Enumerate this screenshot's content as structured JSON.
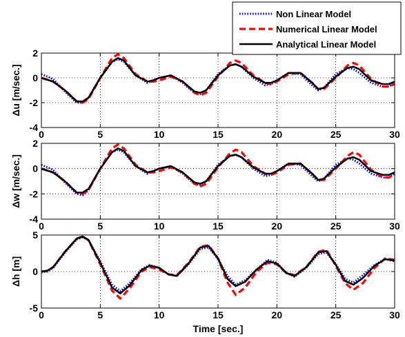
{
  "chart_data": {
    "type": "line",
    "legend": {
      "placement": "top-right",
      "entries": [
        {
          "label": "Non Linear Model",
          "color": "#0000ff",
          "style": "dotted"
        },
        {
          "label": "Numerical Linear Model",
          "color": "#ff0000",
          "style": "dashed"
        },
        {
          "label": "Analytical Linear Model",
          "color": "#000000",
          "style": "solid"
        }
      ]
    },
    "xlabel": "Time [sec.]",
    "xlim": [
      0,
      30
    ],
    "xticks": [
      0,
      5,
      10,
      15,
      20,
      25,
      30
    ],
    "grid": true,
    "subplots": [
      {
        "ylabel": "Δu [m/sec.]",
        "ylim": [
          -4,
          2
        ],
        "yticks": [
          -4,
          -2,
          0,
          2
        ],
        "series": [
          {
            "name": "Non Linear Model",
            "x": [
              0,
              1,
              2,
              3,
              3.5,
              4,
              5,
              6,
              6.5,
              7,
              8,
              9,
              9.5,
              10,
              11,
              12,
              13,
              13.5,
              14,
              15,
              16,
              16.5,
              17,
              18,
              19,
              19.5,
              20,
              21,
              22,
              23,
              23.5,
              24,
              25,
              26,
              26.5,
              27,
              28,
              29,
              29.5,
              30
            ],
            "y": [
              0.3,
              -0.1,
              -1.1,
              -2.0,
              -2.0,
              -1.6,
              0,
              1.3,
              1.5,
              1.3,
              0.2,
              -0.4,
              -0.2,
              0.0,
              0.2,
              -0.4,
              -1.2,
              -1.3,
              -1.0,
              0.3,
              1.0,
              1.1,
              0.9,
              0.0,
              -0.6,
              -0.5,
              -0.2,
              0.4,
              0.3,
              -0.6,
              -1.0,
              -0.8,
              0.3,
              0.8,
              0.7,
              0.4,
              -0.4,
              -0.7,
              -0.7,
              -0.4
            ]
          },
          {
            "name": "Numerical Linear Model",
            "x": [
              0,
              1,
              2,
              3,
              3.5,
              4,
              5,
              6,
              6.5,
              7,
              8,
              9,
              9.5,
              10,
              11,
              12,
              13,
              13.5,
              14,
              15,
              16,
              16.5,
              17,
              18,
              19,
              19.5,
              20,
              21,
              22,
              23,
              23.5,
              24,
              25,
              26,
              26.5,
              27,
              28,
              29,
              29.5,
              30
            ],
            "y": [
              0.0,
              -0.3,
              -1.0,
              -1.9,
              -2.0,
              -1.7,
              0,
              1.6,
              1.9,
              1.6,
              0.3,
              -0.3,
              -0.3,
              -0.2,
              0.1,
              -0.3,
              -1.2,
              -1.4,
              -1.2,
              0.1,
              1.2,
              1.4,
              1.2,
              0.2,
              -0.4,
              -0.5,
              -0.3,
              0.3,
              0.4,
              -0.4,
              -0.9,
              -0.9,
              0.0,
              1.0,
              1.2,
              1.0,
              -0.1,
              -0.7,
              -0.7,
              -0.5
            ]
          },
          {
            "name": "Analytical Linear Model",
            "x": [
              0,
              1,
              2,
              3,
              3.5,
              4,
              5,
              6,
              6.5,
              7,
              8,
              9,
              9.5,
              10,
              11,
              12,
              13,
              13.5,
              14,
              15,
              16,
              16.5,
              17,
              18,
              19,
              19.5,
              20,
              21,
              22,
              23,
              23.5,
              24,
              25,
              26,
              26.5,
              27,
              28,
              29,
              29.5,
              30
            ],
            "y": [
              0.0,
              -0.3,
              -1.0,
              -1.9,
              -1.9,
              -1.6,
              0,
              1.3,
              1.6,
              1.4,
              0.2,
              -0.3,
              -0.2,
              0.0,
              0.2,
              -0.3,
              -1.1,
              -1.2,
              -1.0,
              0.2,
              1.0,
              1.1,
              0.9,
              0.1,
              -0.4,
              -0.4,
              -0.2,
              0.4,
              0.4,
              -0.4,
              -0.9,
              -0.8,
              0.1,
              0.8,
              0.9,
              0.7,
              -0.2,
              -0.5,
              -0.5,
              -0.3
            ]
          }
        ]
      },
      {
        "ylabel": "Δw [m/sec.]",
        "ylim": [
          -4,
          2
        ],
        "yticks": [
          -4,
          -2,
          0,
          2
        ],
        "series": [
          {
            "name": "Non Linear Model",
            "x": [
              0,
              1,
              2,
              3,
              3.5,
              4,
              5,
              6,
              6.5,
              7,
              8,
              9,
              9.5,
              10,
              11,
              12,
              13,
              13.5,
              14,
              15,
              16,
              16.5,
              17,
              18,
              19,
              19.5,
              20,
              21,
              22,
              23,
              23.5,
              24,
              25,
              26,
              26.5,
              27,
              28,
              29,
              29.5,
              30
            ],
            "y": [
              0.3,
              -0.1,
              -1.1,
              -2.0,
              -2.1,
              -1.7,
              0,
              1.3,
              1.5,
              1.3,
              0.2,
              -0.4,
              -0.2,
              0.0,
              0.2,
              -0.4,
              -1.2,
              -1.3,
              -1.0,
              0.3,
              1.0,
              1.1,
              0.9,
              0.0,
              -0.6,
              -0.5,
              -0.2,
              0.4,
              0.3,
              -0.6,
              -1.0,
              -0.8,
              0.3,
              0.8,
              0.7,
              0.4,
              -0.4,
              -0.7,
              -0.7,
              -0.4
            ]
          },
          {
            "name": "Numerical Linear Model",
            "x": [
              0,
              1,
              2,
              3,
              3.5,
              4,
              5,
              6,
              6.5,
              7,
              8,
              9,
              9.5,
              10,
              11,
              12,
              13,
              13.5,
              14,
              15,
              16,
              16.5,
              17,
              18,
              19,
              19.5,
              20,
              21,
              22,
              23,
              23.5,
              24,
              25,
              26,
              26.5,
              27,
              28,
              29,
              29.5,
              30
            ],
            "y": [
              0.0,
              -0.3,
              -1.0,
              -1.9,
              -2.0,
              -1.7,
              0,
              1.6,
              1.9,
              1.6,
              0.3,
              -0.3,
              -0.3,
              -0.2,
              0.1,
              -0.3,
              -1.2,
              -1.4,
              -1.2,
              0.1,
              1.2,
              1.5,
              1.3,
              0.2,
              -0.4,
              -0.5,
              -0.3,
              0.3,
              0.4,
              -0.4,
              -0.9,
              -0.9,
              0.0,
              1.0,
              1.3,
              1.1,
              -0.1,
              -0.7,
              -0.7,
              -0.5
            ]
          },
          {
            "name": "Analytical Linear Model",
            "x": [
              0,
              1,
              2,
              3,
              3.5,
              4,
              5,
              6,
              6.5,
              7,
              8,
              9,
              9.5,
              10,
              11,
              12,
              13,
              13.5,
              14,
              15,
              16,
              16.5,
              17,
              18,
              19,
              19.5,
              20,
              21,
              22,
              23,
              23.5,
              24,
              25,
              26,
              26.5,
              27,
              28,
              29,
              29.5,
              30
            ],
            "y": [
              0.0,
              -0.3,
              -1.0,
              -1.9,
              -1.9,
              -1.6,
              0,
              1.3,
              1.6,
              1.4,
              0.2,
              -0.3,
              -0.2,
              0.0,
              0.2,
              -0.3,
              -1.1,
              -1.2,
              -1.0,
              0.2,
              1.0,
              1.1,
              0.9,
              0.1,
              -0.4,
              -0.4,
              -0.2,
              0.4,
              0.4,
              -0.4,
              -0.9,
              -0.8,
              0.1,
              0.8,
              0.9,
              0.7,
              -0.2,
              -0.5,
              -0.5,
              -0.3
            ]
          }
        ]
      },
      {
        "ylabel": "Δh [m]",
        "ylim": [
          -5,
          5
        ],
        "yticks": [
          -5,
          0,
          5
        ],
        "series": [
          {
            "name": "Non Linear Model",
            "x": [
              0,
              0.5,
              1,
              2,
              3,
              3.5,
              4,
              5,
              6,
              6.7,
              7.5,
              8.5,
              9.2,
              10,
              10.8,
              11.5,
              12.5,
              13.5,
              14.2,
              15,
              15.8,
              16.5,
              17.3,
              18.3,
              19.2,
              20,
              20.8,
              21.5,
              22.5,
              23.5,
              24.2,
              25,
              25.8,
              26.5,
              27.3,
              28.3,
              29.2,
              30
            ],
            "y": [
              -0.1,
              0.0,
              0.5,
              2.6,
              4.4,
              4.7,
              4.3,
              1.4,
              -1.8,
              -2.7,
              -1.6,
              0.3,
              0.9,
              0.5,
              -0.4,
              -0.6,
              1.0,
              3.1,
              3.3,
              1.7,
              -0.6,
              -1.8,
              -1.2,
              0.3,
              1.6,
              1.2,
              -0.2,
              -0.7,
              0.5,
              2.4,
              2.6,
              1.0,
              -1.0,
              -1.5,
              -0.5,
              0.9,
              1.7,
              1.4
            ]
          },
          {
            "name": "Numerical Linear Model",
            "x": [
              0,
              0.5,
              1,
              2,
              3,
              3.5,
              4,
              5,
              6,
              6.7,
              7.5,
              8.5,
              9.2,
              10,
              10.8,
              11.5,
              12.5,
              13.5,
              14.2,
              15,
              15.8,
              16.5,
              17.3,
              18.3,
              19.2,
              20,
              20.8,
              21.5,
              22.5,
              23.5,
              24.2,
              25,
              25.8,
              26.5,
              27.3,
              28.3,
              29.2,
              30
            ],
            "y": [
              0.0,
              0.1,
              0.6,
              2.7,
              4.5,
              4.8,
              4.3,
              1.0,
              -2.6,
              -3.7,
              -2.3,
              0.0,
              0.6,
              0.3,
              -0.4,
              -0.5,
              1.2,
              3.4,
              3.6,
              1.8,
              -1.5,
              -3.2,
              -2.2,
              0.0,
              1.2,
              1.0,
              -0.2,
              -0.5,
              0.6,
              2.7,
              3.0,
              0.8,
              -1.6,
              -2.5,
              -1.6,
              0.5,
              1.8,
              1.6
            ]
          },
          {
            "name": "Analytical Linear Model",
            "x": [
              0,
              0.5,
              1,
              2,
              3,
              3.5,
              4,
              5,
              6,
              6.7,
              7.5,
              8.5,
              9.2,
              10,
              10.8,
              11.5,
              12.5,
              13.5,
              14.2,
              15,
              15.8,
              16.5,
              17.3,
              18.3,
              19.2,
              20,
              20.8,
              21.5,
              22.5,
              23.5,
              24.2,
              25,
              25.8,
              26.5,
              27.3,
              28.3,
              29.2,
              30
            ],
            "y": [
              0.0,
              0.1,
              0.6,
              2.7,
              4.5,
              4.8,
              4.3,
              1.2,
              -2.2,
              -3.0,
              -1.9,
              0.2,
              0.8,
              0.5,
              -0.4,
              -0.6,
              1.1,
              3.3,
              3.5,
              1.8,
              -1.0,
              -2.0,
              -1.4,
              0.3,
              1.4,
              1.1,
              -0.2,
              -0.6,
              0.6,
              2.6,
              2.8,
              0.9,
              -1.3,
              -1.8,
              -0.9,
              0.8,
              1.7,
              1.5
            ]
          }
        ]
      }
    ]
  }
}
